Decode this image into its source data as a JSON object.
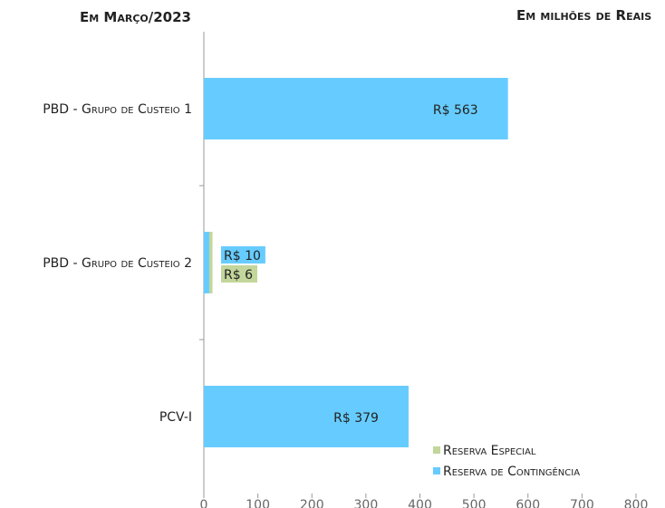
{
  "chart_data": {
    "type": "bar",
    "orientation": "horizontal",
    "stacked": true,
    "title": "Em Março/2023",
    "subtitle": "Em milhões de Reais",
    "categories": [
      "PBD - Grupo de Custeio 1",
      "PBD - Grupo de Custeio 2",
      "PCV-I"
    ],
    "series": [
      {
        "name": "Reserva de Contingência",
        "color": "#66ccff",
        "values": [
          563,
          10,
          379
        ],
        "value_labels": [
          "R$ 563",
          "R$ 10",
          "R$ 379"
        ]
      },
      {
        "name": "Reserva Especial",
        "color": "#c3d69b",
        "values": [
          null,
          6,
          null
        ],
        "value_labels": [
          null,
          "R$ 6",
          null
        ]
      }
    ],
    "xlim": [
      0,
      800
    ],
    "xticks": [
      0,
      100,
      200,
      300,
      400,
      500,
      600,
      700,
      800
    ],
    "legend": "lower right"
  }
}
